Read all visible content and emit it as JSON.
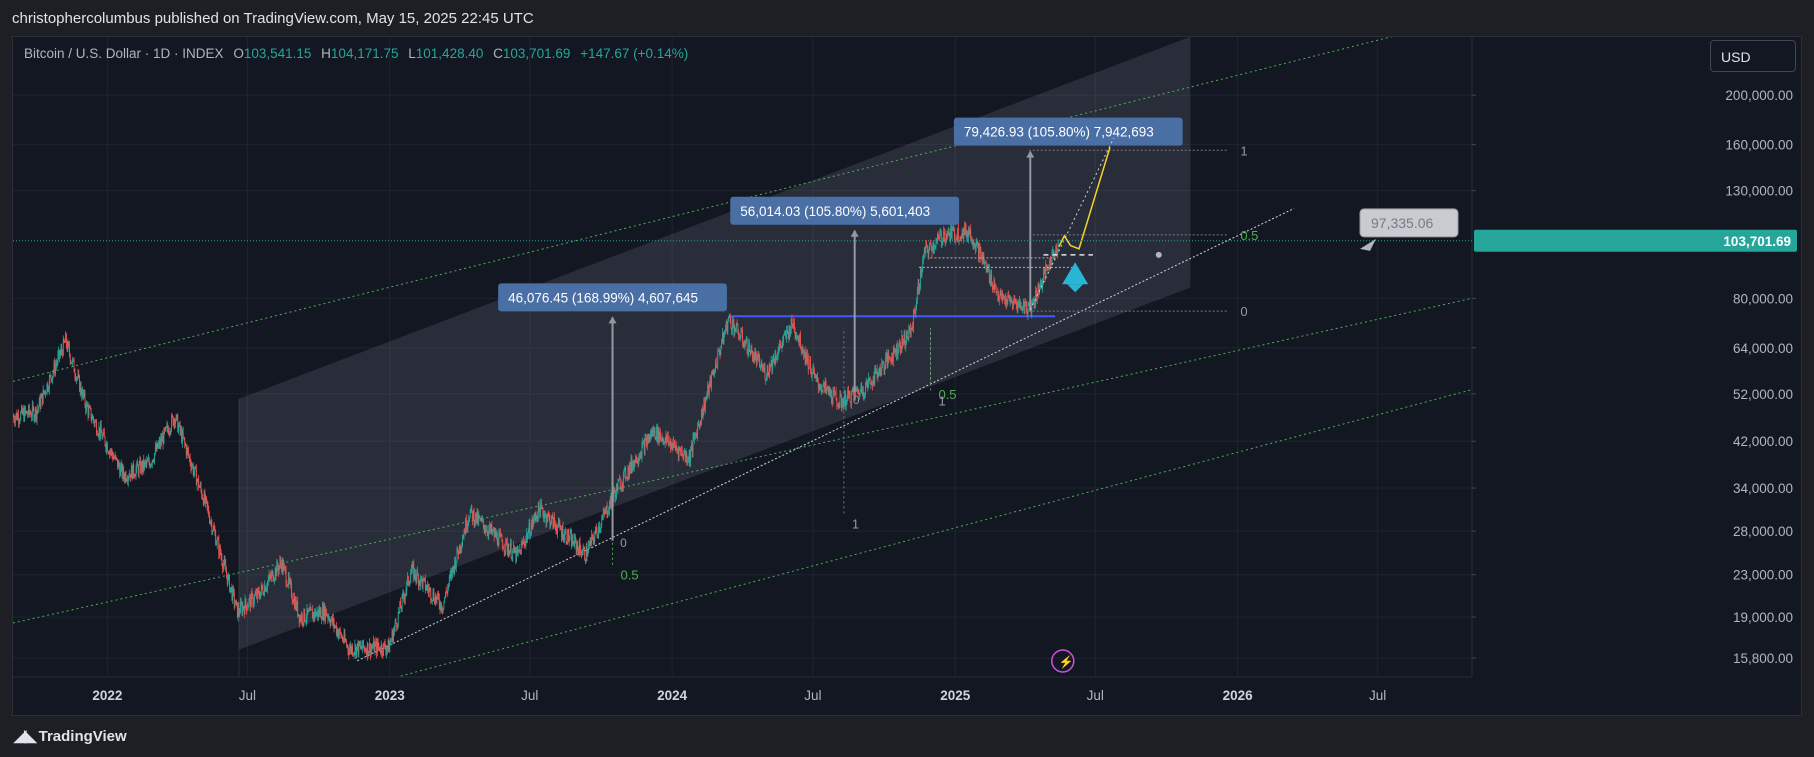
{
  "header": {
    "published": "christophercolumbus published on TradingView.com, May 15, 2025 22:45 UTC"
  },
  "legend": {
    "symbol": "Bitcoin / U.S. Dollar · 1D · INDEX",
    "open_label": "O",
    "open": "103,541.15",
    "high_label": "H",
    "high": "104,171.75",
    "low_label": "L",
    "low": "101,428.40",
    "close_label": "C",
    "close": "103,701.69",
    "change": "+147.67 (+0.14%)"
  },
  "currency_button": "USD",
  "footer": {
    "brand": "TradingView"
  },
  "colors": {
    "background": "#131722",
    "up": "#26a69a",
    "down": "#ef5350",
    "fib_green": "#4caf50",
    "label_blue": "#4a6fa5",
    "blue_line": "#3d5afe",
    "yellow": "#f5d32a",
    "cyan_arrow": "#29b6d6",
    "price_badge": "#26a69a"
  },
  "icons": {
    "flash": "flash-icon",
    "logo": "tradingview-logo-icon"
  },
  "chart_data": {
    "type": "candlestick",
    "y_scale": "log",
    "ylim": [
      14500,
      260000
    ],
    "x_range": [
      "2021-09-01",
      "2026-10-31"
    ],
    "y_ticks": [
      {
        "v": 15800,
        "label": "15,800.00"
      },
      {
        "v": 19000,
        "label": "19,000.00"
      },
      {
        "v": 23000,
        "label": "23,000.00"
      },
      {
        "v": 28000,
        "label": "28,000.00"
      },
      {
        "v": 34000,
        "label": "34,000.00"
      },
      {
        "v": 42000,
        "label": "42,000.00"
      },
      {
        "v": 52000,
        "label": "52,000.00"
      },
      {
        "v": 64000,
        "label": "64,000.00"
      },
      {
        "v": 80000,
        "label": "80,000.00"
      },
      {
        "v": 130000,
        "label": "130,000.00"
      },
      {
        "v": 160000,
        "label": "160,000.00"
      },
      {
        "v": 200000,
        "label": "200,000.00"
      }
    ],
    "x_ticks": [
      {
        "d": "2022-01-01",
        "label": "2022"
      },
      {
        "d": "2022-07-01",
        "label": "Jul"
      },
      {
        "d": "2023-01-01",
        "label": "2023"
      },
      {
        "d": "2023-07-01",
        "label": "Jul"
      },
      {
        "d": "2024-01-01",
        "label": "2024"
      },
      {
        "d": "2024-07-01",
        "label": "Jul"
      },
      {
        "d": "2025-01-01",
        "label": "2025"
      },
      {
        "d": "2025-07-01",
        "label": "Jul"
      },
      {
        "d": "2026-01-01",
        "label": "2026"
      },
      {
        "d": "2026-07-01",
        "label": "Jul"
      }
    ],
    "price_path": [
      [
        "2021-09-01",
        47000
      ],
      [
        "2021-10-01",
        48000
      ],
      [
        "2021-11-08",
        66000
      ],
      [
        "2021-12-05",
        49000
      ],
      [
        "2022-01-22",
        36000
      ],
      [
        "2022-02-24",
        38000
      ],
      [
        "2022-03-29",
        47000
      ],
      [
        "2022-05-10",
        31000
      ],
      [
        "2022-06-18",
        19500
      ],
      [
        "2022-07-15",
        21000
      ],
      [
        "2022-08-14",
        24300
      ],
      [
        "2022-09-07",
        19000
      ],
      [
        "2022-10-10",
        19500
      ],
      [
        "2022-11-09",
        16500
      ],
      [
        "2022-12-31",
        16600
      ],
      [
        "2023-01-29",
        23500
      ],
      [
        "2023-03-10",
        20000
      ],
      [
        "2023-04-14",
        30500
      ],
      [
        "2023-06-15",
        25000
      ],
      [
        "2023-07-13",
        31000
      ],
      [
        "2023-09-11",
        25200
      ],
      [
        "2023-10-24",
        34500
      ],
      [
        "2023-12-08",
        44000
      ],
      [
        "2024-01-23",
        39000
      ],
      [
        "2024-03-14",
        73000
      ],
      [
        "2024-05-01",
        57000
      ],
      [
        "2024-06-05",
        71500
      ],
      [
        "2024-07-05",
        55000
      ],
      [
        "2024-08-05",
        50000
      ],
      [
        "2024-09-06",
        53500
      ],
      [
        "2024-11-05",
        69000
      ],
      [
        "2024-11-22",
        98000
      ],
      [
        "2024-12-17",
        106500
      ],
      [
        "2025-01-20",
        108000
      ],
      [
        "2025-02-28",
        80000
      ],
      [
        "2025-04-08",
        76500
      ],
      [
        "2025-05-15",
        103700
      ]
    ],
    "last_price": {
      "value": 103701.69,
      "label": "103,701.69"
    },
    "channel": {
      "date1": "2022-06-20",
      "price1": 16400,
      "date2": "2025-11-01",
      "price2": 84000,
      "ratio_top": 3.1
    },
    "green_lines": [
      {
        "date1": "2021-09-01",
        "price1": 55000,
        "date2": "2026-10-31",
        "price2": 285000
      },
      {
        "date1": "2021-09-01",
        "price1": 18500,
        "date2": "2026-10-31",
        "price2": 80000
      },
      {
        "date1": "2022-10-26",
        "price1": 13500,
        "date2": "2026-10-31",
        "price2": 53000
      }
    ],
    "support_line": {
      "date1": "2022-11-20",
      "price1": 15600,
      "date2": "2026-03-15",
      "price2": 120000
    },
    "resistance": {
      "date1": "2024-03-14",
      "date2": "2025-05-10",
      "price": 73800
    },
    "measures": [
      {
        "date": "2023-10-16",
        "from": 26800,
        "to": 73400,
        "label": "46,076.45 (168.99%) 4,607,645"
      },
      {
        "date": "2024-08-24",
        "from": 52500,
        "to": 108500,
        "label": "56,014.03 (105.80%) 5,601,403"
      },
      {
        "date": "2025-04-08",
        "from": 75500,
        "to": 155000,
        "label": "79,426.93 (105.80%) 7,942,693"
      }
    ],
    "fib_sets": [
      {
        "date1": "2023-10-16",
        "date2": "2024-07-15",
        "levels": [
          {
            "p": 23000,
            "label": "0.5"
          }
        ],
        "zero": {
          "d": "2023-10-18",
          "p": 27000
        }
      },
      {
        "date1": "2024-08-10",
        "date2": "2024-08-24",
        "levels": [
          {
            "p": 29000,
            "label": "1"
          }
        ],
        "zero": {
          "d": "2024-08-14",
          "p": 51500
        }
      },
      {
        "date1": "2024-11-30",
        "date2": "2025-04-30",
        "levels": [
          {
            "p": 52000,
            "label": "0.5"
          },
          {
            "p": 50500,
            "label": "1"
          }
        ]
      }
    ],
    "fib_right": [
      {
        "p": 156000,
        "label": "1",
        "color": "#9598a1"
      },
      {
        "p": 106500,
        "label": "0.5",
        "color": "#4caf50"
      },
      {
        "p": 75500,
        "label": "0",
        "color": "#9598a1"
      }
    ],
    "callout": {
      "label": "97,335.06",
      "value": 97335.06
    },
    "flash_date": "2025-05-20"
  }
}
